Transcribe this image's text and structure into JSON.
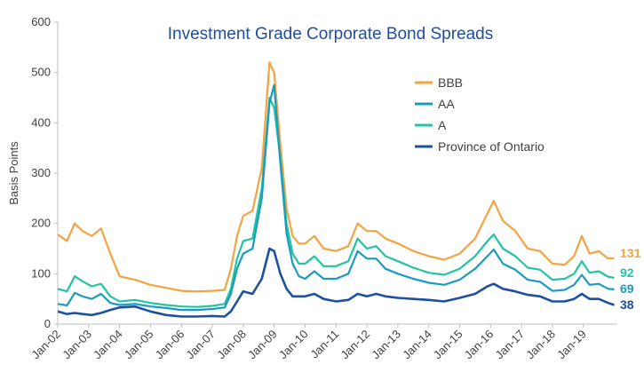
{
  "chart_data": {
    "type": "line",
    "title": "Investment Grade Corporate Bond Spreads",
    "xlabel": "",
    "ylabel": "Basis Points",
    "ylim": [
      0,
      600
    ],
    "yticks": [
      0,
      100,
      200,
      300,
      400,
      500,
      600
    ],
    "xlim": [
      2002.0,
      2020.1
    ],
    "xtick_labels": [
      "Jan-02",
      "Jan-03",
      "Jan-04",
      "Jan-05",
      "Jan-06",
      "Jan-07",
      "Jan-08",
      "Jan-09",
      "Jan-10",
      "Jan-11",
      "Jan-12",
      "Jan-13",
      "Jan-14",
      "Jan-15",
      "Jan-16",
      "Jan-17",
      "Jan-18",
      "Jan-19"
    ],
    "grid": false,
    "legend_position": "top-right",
    "series": [
      {
        "name": "BBB",
        "color": "#f4a340",
        "end_label": "131",
        "points": [
          [
            2002.0,
            178
          ],
          [
            2002.3,
            165
          ],
          [
            2002.55,
            200
          ],
          [
            2002.8,
            185
          ],
          [
            2003.1,
            175
          ],
          [
            2003.4,
            190
          ],
          [
            2003.7,
            140
          ],
          [
            2004.0,
            95
          ],
          [
            2004.5,
            88
          ],
          [
            2005.0,
            78
          ],
          [
            2005.5,
            72
          ],
          [
            2006.0,
            66
          ],
          [
            2006.5,
            65
          ],
          [
            2007.0,
            66
          ],
          [
            2007.4,
            68
          ],
          [
            2007.6,
            110
          ],
          [
            2007.8,
            175
          ],
          [
            2008.0,
            215
          ],
          [
            2008.3,
            225
          ],
          [
            2008.6,
            310
          ],
          [
            2008.85,
            520
          ],
          [
            2009.0,
            500
          ],
          [
            2009.2,
            360
          ],
          [
            2009.4,
            230
          ],
          [
            2009.6,
            175
          ],
          [
            2009.8,
            160
          ],
          [
            2010.0,
            160
          ],
          [
            2010.3,
            175
          ],
          [
            2010.6,
            150
          ],
          [
            2011.0,
            145
          ],
          [
            2011.4,
            155
          ],
          [
            2011.7,
            200
          ],
          [
            2012.0,
            185
          ],
          [
            2012.3,
            185
          ],
          [
            2012.6,
            170
          ],
          [
            2013.0,
            160
          ],
          [
            2013.5,
            145
          ],
          [
            2014.0,
            135
          ],
          [
            2014.5,
            128
          ],
          [
            2015.0,
            140
          ],
          [
            2015.5,
            170
          ],
          [
            2015.9,
            220
          ],
          [
            2016.1,
            245
          ],
          [
            2016.4,
            205
          ],
          [
            2016.8,
            185
          ],
          [
            2017.2,
            150
          ],
          [
            2017.6,
            145
          ],
          [
            2018.0,
            120
          ],
          [
            2018.4,
            118
          ],
          [
            2018.7,
            135
          ],
          [
            2018.95,
            175
          ],
          [
            2019.2,
            140
          ],
          [
            2019.5,
            145
          ],
          [
            2019.8,
            130
          ],
          [
            2020.0,
            131
          ]
        ]
      },
      {
        "name": "AA",
        "color": "#1b9bc0",
        "end_label": "69",
        "points": [
          [
            2002.0,
            40
          ],
          [
            2002.3,
            37
          ],
          [
            2002.55,
            62
          ],
          [
            2002.8,
            55
          ],
          [
            2003.1,
            50
          ],
          [
            2003.4,
            60
          ],
          [
            2003.7,
            42
          ],
          [
            2004.0,
            38
          ],
          [
            2004.5,
            40
          ],
          [
            2005.0,
            35
          ],
          [
            2005.5,
            32
          ],
          [
            2006.0,
            28
          ],
          [
            2006.5,
            28
          ],
          [
            2007.0,
            30
          ],
          [
            2007.4,
            33
          ],
          [
            2007.6,
            60
          ],
          [
            2007.8,
            110
          ],
          [
            2008.0,
            140
          ],
          [
            2008.3,
            150
          ],
          [
            2008.6,
            250
          ],
          [
            2008.85,
            440
          ],
          [
            2009.0,
            475
          ],
          [
            2009.2,
            320
          ],
          [
            2009.4,
            180
          ],
          [
            2009.6,
            120
          ],
          [
            2009.8,
            95
          ],
          [
            2010.0,
            90
          ],
          [
            2010.3,
            105
          ],
          [
            2010.6,
            90
          ],
          [
            2011.0,
            90
          ],
          [
            2011.4,
            100
          ],
          [
            2011.7,
            145
          ],
          [
            2012.0,
            130
          ],
          [
            2012.3,
            130
          ],
          [
            2012.6,
            110
          ],
          [
            2013.0,
            100
          ],
          [
            2013.5,
            90
          ],
          [
            2014.0,
            82
          ],
          [
            2014.5,
            78
          ],
          [
            2015.0,
            88
          ],
          [
            2015.5,
            110
          ],
          [
            2015.9,
            135
          ],
          [
            2016.1,
            148
          ],
          [
            2016.4,
            120
          ],
          [
            2016.8,
            108
          ],
          [
            2017.2,
            88
          ],
          [
            2017.6,
            84
          ],
          [
            2018.0,
            66
          ],
          [
            2018.4,
            68
          ],
          [
            2018.7,
            78
          ],
          [
            2018.95,
            98
          ],
          [
            2019.2,
            78
          ],
          [
            2019.5,
            80
          ],
          [
            2019.8,
            70
          ],
          [
            2020.0,
            69
          ]
        ]
      },
      {
        "name": "A",
        "color": "#23c4a0",
        "end_label": "92",
        "points": [
          [
            2002.0,
            70
          ],
          [
            2002.3,
            65
          ],
          [
            2002.55,
            95
          ],
          [
            2002.8,
            85
          ],
          [
            2003.1,
            75
          ],
          [
            2003.4,
            80
          ],
          [
            2003.7,
            55
          ],
          [
            2004.0,
            45
          ],
          [
            2004.5,
            48
          ],
          [
            2005.0,
            42
          ],
          [
            2005.5,
            38
          ],
          [
            2006.0,
            35
          ],
          [
            2006.5,
            34
          ],
          [
            2007.0,
            36
          ],
          [
            2007.4,
            40
          ],
          [
            2007.6,
            70
          ],
          [
            2007.8,
            130
          ],
          [
            2008.0,
            165
          ],
          [
            2008.3,
            170
          ],
          [
            2008.6,
            270
          ],
          [
            2008.85,
            450
          ],
          [
            2009.0,
            430
          ],
          [
            2009.2,
            330
          ],
          [
            2009.4,
            200
          ],
          [
            2009.6,
            140
          ],
          [
            2009.8,
            120
          ],
          [
            2010.0,
            120
          ],
          [
            2010.3,
            135
          ],
          [
            2010.6,
            115
          ],
          [
            2011.0,
            115
          ],
          [
            2011.4,
            125
          ],
          [
            2011.7,
            170
          ],
          [
            2012.0,
            150
          ],
          [
            2012.3,
            155
          ],
          [
            2012.6,
            135
          ],
          [
            2013.0,
            125
          ],
          [
            2013.5,
            112
          ],
          [
            2014.0,
            102
          ],
          [
            2014.5,
            98
          ],
          [
            2015.0,
            110
          ],
          [
            2015.5,
            135
          ],
          [
            2015.9,
            165
          ],
          [
            2016.1,
            178
          ],
          [
            2016.4,
            150
          ],
          [
            2016.8,
            135
          ],
          [
            2017.2,
            112
          ],
          [
            2017.6,
            108
          ],
          [
            2018.0,
            88
          ],
          [
            2018.4,
            90
          ],
          [
            2018.7,
            100
          ],
          [
            2018.95,
            125
          ],
          [
            2019.2,
            102
          ],
          [
            2019.5,
            105
          ],
          [
            2019.8,
            94
          ],
          [
            2020.0,
            92
          ]
        ]
      },
      {
        "name": "Province of Ontario",
        "color": "#1d4fa3",
        "end_label": "38",
        "points": [
          [
            2002.0,
            25
          ],
          [
            2002.3,
            20
          ],
          [
            2002.55,
            22
          ],
          [
            2002.8,
            20
          ],
          [
            2003.1,
            18
          ],
          [
            2003.4,
            22
          ],
          [
            2003.7,
            28
          ],
          [
            2004.0,
            33
          ],
          [
            2004.5,
            35
          ],
          [
            2005.0,
            25
          ],
          [
            2005.5,
            18
          ],
          [
            2006.0,
            15
          ],
          [
            2006.5,
            15
          ],
          [
            2007.0,
            16
          ],
          [
            2007.4,
            15
          ],
          [
            2007.6,
            25
          ],
          [
            2007.8,
            45
          ],
          [
            2008.0,
            65
          ],
          [
            2008.3,
            60
          ],
          [
            2008.6,
            90
          ],
          [
            2008.85,
            150
          ],
          [
            2009.0,
            145
          ],
          [
            2009.2,
            100
          ],
          [
            2009.4,
            70
          ],
          [
            2009.6,
            55
          ],
          [
            2009.8,
            55
          ],
          [
            2010.0,
            55
          ],
          [
            2010.3,
            60
          ],
          [
            2010.6,
            50
          ],
          [
            2011.0,
            45
          ],
          [
            2011.4,
            48
          ],
          [
            2011.7,
            60
          ],
          [
            2012.0,
            55
          ],
          [
            2012.3,
            60
          ],
          [
            2012.6,
            55
          ],
          [
            2013.0,
            52
          ],
          [
            2013.5,
            50
          ],
          [
            2014.0,
            48
          ],
          [
            2014.5,
            45
          ],
          [
            2015.0,
            52
          ],
          [
            2015.5,
            60
          ],
          [
            2015.9,
            75
          ],
          [
            2016.1,
            80
          ],
          [
            2016.4,
            70
          ],
          [
            2016.8,
            65
          ],
          [
            2017.2,
            58
          ],
          [
            2017.6,
            55
          ],
          [
            2018.0,
            45
          ],
          [
            2018.4,
            45
          ],
          [
            2018.7,
            50
          ],
          [
            2018.95,
            60
          ],
          [
            2019.2,
            50
          ],
          [
            2019.5,
            50
          ],
          [
            2019.8,
            42
          ],
          [
            2020.0,
            38
          ]
        ]
      }
    ]
  }
}
